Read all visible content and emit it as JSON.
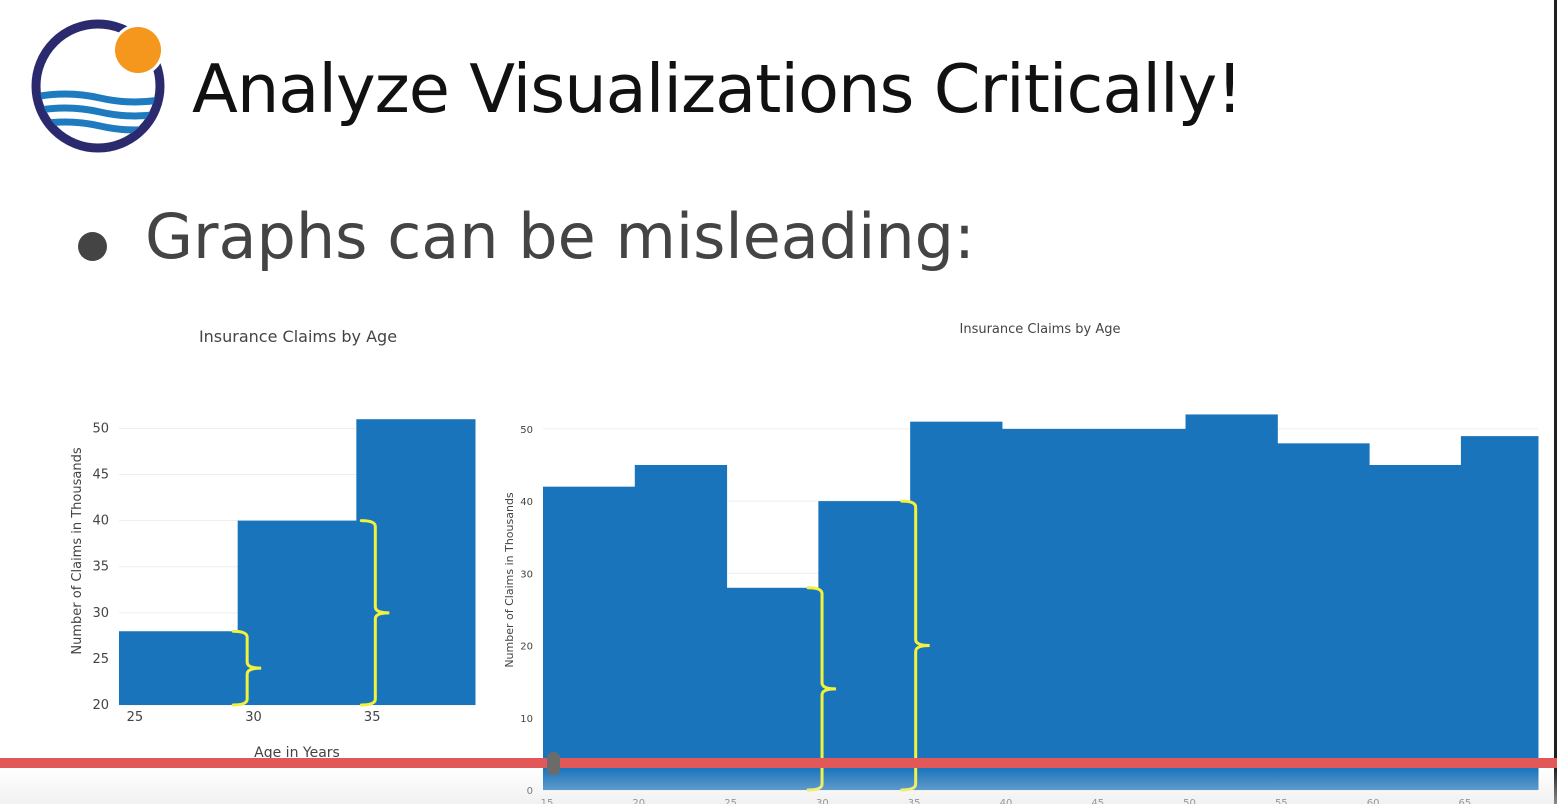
{
  "slide": {
    "title": "Analyze Visualizations Critically!",
    "bullet": "Graphs can be misleading:"
  },
  "colors": {
    "bar": "#1a74bb",
    "bracket": "#f2f23c",
    "grid": "#eeeeee",
    "axis_text": "#444444",
    "progress": "#e25757",
    "logo_ring": "#2b2a6e",
    "logo_sun": "#f5961d",
    "logo_wave": "#1f7bbf"
  },
  "logo": {
    "icon": "sun-over-waves-logo"
  },
  "chart_data": [
    {
      "type": "bar",
      "title": "Insurance Claims by Age",
      "xlabel": "Age in Years",
      "ylabel": "Number of Claims in Thousands",
      "x_tick_labels": [
        "25",
        "30",
        "35"
      ],
      "y_tick_labels": [
        "20",
        "25",
        "30",
        "35",
        "40",
        "45",
        "50"
      ],
      "xlim": [
        24.5,
        39.5
      ],
      "ylim": [
        20,
        52
      ],
      "bars": [
        {
          "x0": 24.5,
          "x1": 29.5,
          "value": 28
        },
        {
          "x0": 29.5,
          "x1": 34.5,
          "value": 40
        },
        {
          "x0": 34.5,
          "x1": 39.5,
          "value": 51
        }
      ],
      "grid": "horizontal",
      "annotations": [
        {
          "shape": "brace",
          "x": 29.9,
          "from": 20,
          "to": 28
        },
        {
          "shape": "brace",
          "x": 35.3,
          "from": 20,
          "to": 40
        }
      ]
    },
    {
      "type": "bar",
      "title": "Insurance Claims by Age",
      "xlabel": "",
      "ylabel": "Number of Claims in Thousands",
      "x_tick_labels": [
        "15",
        "20",
        "25",
        "30",
        "35",
        "40",
        "45",
        "50",
        "55",
        "60",
        "65"
      ],
      "y_tick_labels": [
        "0",
        "10",
        "20",
        "30",
        "40",
        "50"
      ],
      "xlim": [
        15,
        69.2
      ],
      "ylim": [
        0,
        54
      ],
      "bars": [
        {
          "x0": 15,
          "x1": 20,
          "value": 42
        },
        {
          "x0": 20,
          "x1": 25,
          "value": 45
        },
        {
          "x0": 25,
          "x1": 30,
          "value": 28
        },
        {
          "x0": 30,
          "x1": 35,
          "value": 40
        },
        {
          "x0": 35,
          "x1": 40,
          "value": 51
        },
        {
          "x0": 40,
          "x1": 45,
          "value": 50
        },
        {
          "x0": 45,
          "x1": 50,
          "value": 50
        },
        {
          "x0": 50,
          "x1": 55,
          "value": 52
        },
        {
          "x0": 55,
          "x1": 60,
          "value": 48
        },
        {
          "x0": 60,
          "x1": 65,
          "value": 45
        },
        {
          "x0": 65,
          "x1": 70,
          "value": 49
        }
      ],
      "grid": "horizontal",
      "annotations": [
        {
          "shape": "brace",
          "x": 30.2,
          "from": 0,
          "to": 28
        },
        {
          "shape": "brace",
          "x": 35.3,
          "from": 0,
          "to": 40
        }
      ]
    }
  ],
  "player": {
    "progress": 0.355
  }
}
